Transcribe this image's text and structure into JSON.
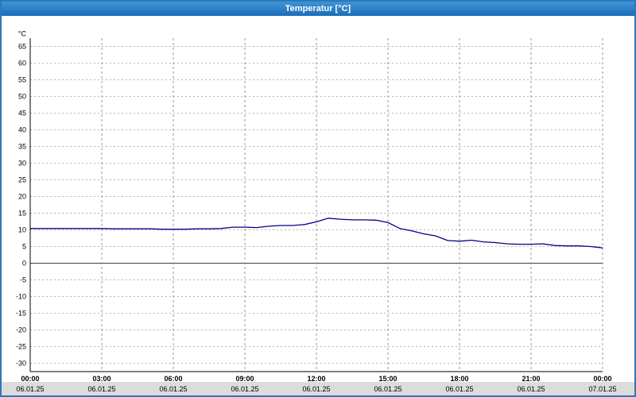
{
  "window": {
    "title": "Temperatur [°C]"
  },
  "colors": {
    "titlebar_bg": "#1a6db8",
    "window_border": "#2e77b8",
    "line": "#00008b",
    "grid_h": "#b4b4b4",
    "grid_v": "#9a9a9a",
    "axis": "#000000",
    "zero_line": "#404040",
    "date_strip_bg": "#dcdcdc",
    "plot_bg": "#ffffff"
  },
  "chart_data": {
    "type": "line",
    "title": "Temperatur [°C]",
    "xlabel": "",
    "ylabel": "°C",
    "ylim": [
      -32.5,
      67.5
    ],
    "grid": "dashed",
    "legend_position": "none",
    "y_ticks": [
      65,
      60,
      55,
      50,
      45,
      40,
      35,
      30,
      25,
      20,
      15,
      10,
      5,
      0,
      -5,
      -10,
      -15,
      -20,
      -25,
      -30
    ],
    "x_ticks": [
      {
        "time": "00:00",
        "date": "06.01.25"
      },
      {
        "time": "03:00",
        "date": "06.01.25"
      },
      {
        "time": "06:00",
        "date": "06.01.25"
      },
      {
        "time": "09:00",
        "date": "06.01.25"
      },
      {
        "time": "12:00",
        "date": "06.01.25"
      },
      {
        "time": "15:00",
        "date": "06.01.25"
      },
      {
        "time": "18:00",
        "date": "06.01.25"
      },
      {
        "time": "21:00",
        "date": "06.01.25"
      },
      {
        "time": "00:00",
        "date": "07.01.25"
      }
    ],
    "x_range_hours": [
      0,
      24
    ],
    "series": [
      {
        "name": "Temperatur",
        "points": [
          [
            0,
            10.4
          ],
          [
            0.5,
            10.4
          ],
          [
            1,
            10.4
          ],
          [
            1.5,
            10.4
          ],
          [
            2,
            10.4
          ],
          [
            2.5,
            10.4
          ],
          [
            3,
            10.4
          ],
          [
            3.5,
            10.3
          ],
          [
            4,
            10.3
          ],
          [
            4.5,
            10.3
          ],
          [
            5,
            10.3
          ],
          [
            5.5,
            10.2
          ],
          [
            6,
            10.2
          ],
          [
            6.5,
            10.2
          ],
          [
            7,
            10.3
          ],
          [
            7.5,
            10.3
          ],
          [
            8,
            10.4
          ],
          [
            8.5,
            10.8
          ],
          [
            9,
            10.8
          ],
          [
            9.5,
            10.7
          ],
          [
            10,
            11.1
          ],
          [
            10.5,
            11.3
          ],
          [
            11,
            11.3
          ],
          [
            11.5,
            11.6
          ],
          [
            12,
            12.4
          ],
          [
            12.5,
            13.5
          ],
          [
            13,
            13.2
          ],
          [
            13.5,
            13.0
          ],
          [
            14,
            13.0
          ],
          [
            14.5,
            12.9
          ],
          [
            15,
            12.2
          ],
          [
            15.5,
            10.4
          ],
          [
            16,
            9.7
          ],
          [
            16.5,
            8.8
          ],
          [
            17,
            8.2
          ],
          [
            17.5,
            6.8
          ],
          [
            18,
            6.6
          ],
          [
            18.5,
            6.9
          ],
          [
            19,
            6.4
          ],
          [
            19.5,
            6.2
          ],
          [
            20,
            5.8
          ],
          [
            20.5,
            5.7
          ],
          [
            21,
            5.7
          ],
          [
            21.5,
            5.8
          ],
          [
            22,
            5.3
          ],
          [
            22.5,
            5.2
          ],
          [
            23,
            5.2
          ],
          [
            23.5,
            5.0
          ],
          [
            24,
            4.6
          ]
        ]
      }
    ]
  }
}
